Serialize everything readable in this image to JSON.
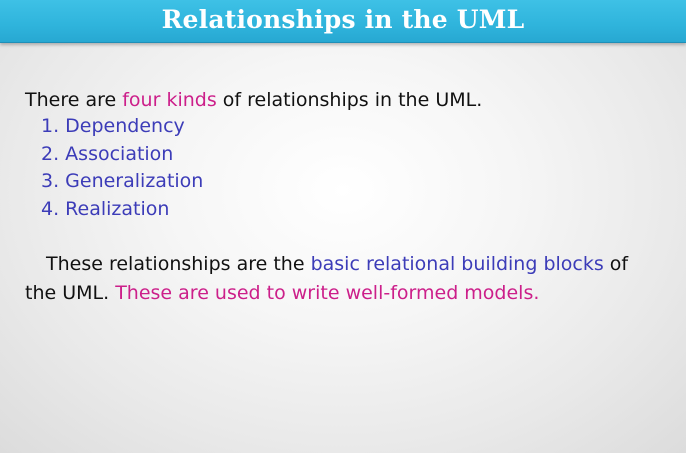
{
  "title": "Relationships in the UML",
  "intro": {
    "before": "There are ",
    "highlight": "four kinds",
    "after": " of relationships in the UML."
  },
  "relationships": [
    "1. Dependency",
    "2. Association",
    "3. Generalization",
    "4. Realization"
  ],
  "paragraph": {
    "before": "These relationships are the ",
    "highlight_blue": "basic relational building blocks",
    "middle": " of the UML. ",
    "highlight_magenta": "These are used to write well-formed models."
  },
  "colors": {
    "title_bar": "#2fb4dc",
    "magenta": "#cc1f8a",
    "blue": "#3c3cb8"
  }
}
